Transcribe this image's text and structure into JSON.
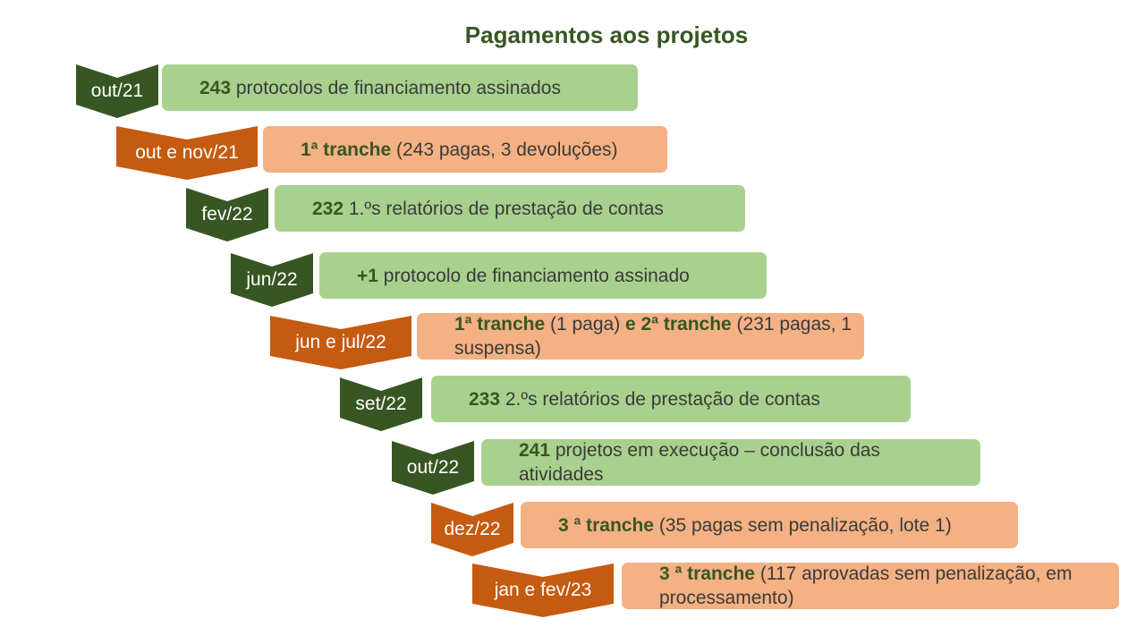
{
  "title": "Pagamentos aos projetos",
  "colors": {
    "green_tag": "#375623",
    "orange_tag": "#c55a11",
    "green_box": "#a9d18e",
    "orange_box": "#f4b183",
    "bold_text": "#375623"
  },
  "steps": [
    {
      "date": "out/21",
      "color": "green",
      "bold": "243",
      "text": " protocolos de financiamento assinados"
    },
    {
      "date": "out e nov/21",
      "color": "orange",
      "bold": "1ª tranche",
      "text": " (243 pagas, 3 devoluções)"
    },
    {
      "date": "fev/22",
      "color": "green",
      "bold": "232",
      "text": " 1.ºs relatórios de prestação de contas"
    },
    {
      "date": "jun/22",
      "color": "green",
      "bold": "+1",
      "text": " protocolo de financiamento assinado"
    },
    {
      "date": "jun e jul/22",
      "color": "orange",
      "bold": "1ª tranche",
      "text": " (1 paga) ",
      "bold2": "e 2ª tranche",
      "text2": " (231 pagas, 1 suspensa)"
    },
    {
      "date": "set/22",
      "color": "green",
      "bold": "233",
      "text": " 2.ºs relatórios de prestação de contas"
    },
    {
      "date": "out/22",
      "color": "green",
      "bold": "241",
      "text": " projetos em execução – conclusão das atividades"
    },
    {
      "date": "dez/22",
      "color": "orange",
      "bold": "3 ª tranche",
      "text": " (35 pagas sem penalização, lote 1)"
    },
    {
      "date": "jan e fev/23",
      "color": "orange",
      "bold": "3 ª tranche",
      "text": " (117 aprovadas sem penalização, em processamento)"
    }
  ]
}
